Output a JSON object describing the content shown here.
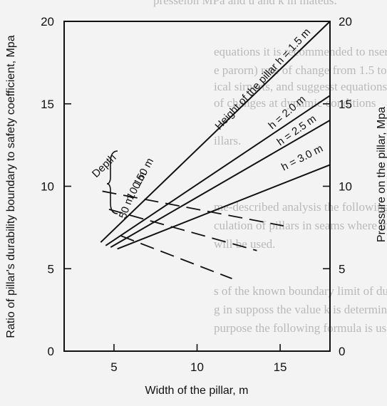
{
  "background_text": [
    "presseibn MPa and u and k in mateus.",
    "equations it is recommended to nseri the co",
    "e parorn) rate of change from 1.5 to",
    "ical sirnerts, and suggesst equations",
    "of changes at dynamic conditions",
    "illars.",
    "me-described analysis the following methods",
    "culation of pillars in seams where the roo",
    "will be used.",
    "s of the known boundary limit of durability",
    "g in supposs the value k is determined",
    "purpose the following formula is used"
  ],
  "chart_data": {
    "type": "line",
    "xlabel": "Width of the pillar, m",
    "ylabel_left": "Ratio of pillar's durability boundary to safety coefficient, Mpa",
    "ylabel_right": "Pressure on the pillar, Mpa",
    "xlim": [
      2,
      18
    ],
    "ylim": [
      0,
      20
    ],
    "x_ticks": [
      5,
      10,
      15
    ],
    "x_tick_labels": [
      "5",
      "10",
      "15"
    ],
    "y_ticks": [
      0,
      5,
      10,
      15,
      20
    ],
    "y_tick_labels": [
      "0",
      "5",
      "10",
      "15",
      "20"
    ],
    "grid": false,
    "series": [
      {
        "name": "h = 1.5 m",
        "style": "solid",
        "x": [
          4.2,
          18.0
        ],
        "y": [
          6.6,
          20.0
        ]
      },
      {
        "name": "h = 2.0 m",
        "style": "solid",
        "x": [
          4.5,
          18.0
        ],
        "y": [
          6.4,
          15.5
        ]
      },
      {
        "name": "h = 2.5 m",
        "style": "solid",
        "x": [
          4.8,
          18.0
        ],
        "y": [
          6.3,
          14.0
        ]
      },
      {
        "name": "h = 3.0 m",
        "style": "solid",
        "x": [
          5.2,
          18.0
        ],
        "y": [
          6.2,
          11.3
        ]
      }
    ],
    "depth_lines": [
      {
        "name": "150 m",
        "style": "dashed",
        "x": [
          4.3,
          15.2
        ],
        "y": [
          9.7,
          7.6
        ]
      },
      {
        "name": "100 m",
        "style": "dashed",
        "x": [
          4.7,
          13.6
        ],
        "y": [
          8.6,
          6.1
        ]
      },
      {
        "name": "50 m",
        "style": "dashed",
        "x": [
          5.4,
          12.1
        ],
        "y": [
          7.0,
          4.4
        ]
      }
    ],
    "annotations": {
      "height_label": "Height of the pillar h = 1.5 m",
      "h20": "h = 2.0 m",
      "h25": "h = 2.5 m",
      "h30": "h = 3.0 m",
      "depth": "Depth",
      "d150": "150 m",
      "d100": "100 m",
      "d50": "50 m"
    }
  }
}
